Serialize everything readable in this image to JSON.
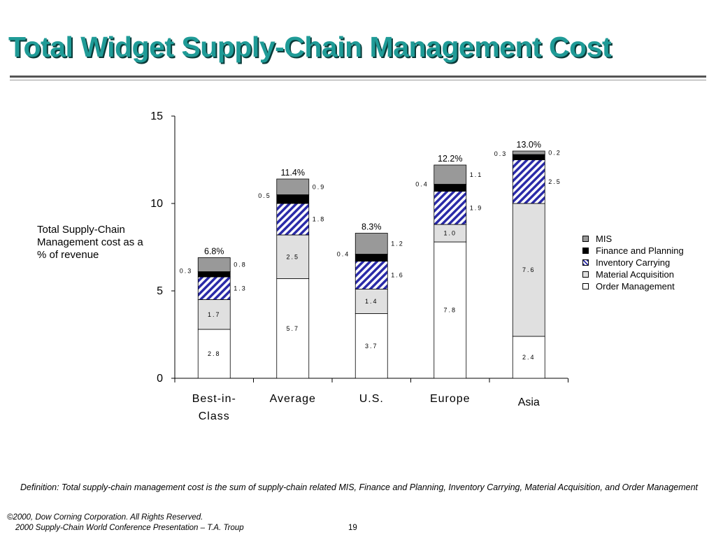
{
  "page": {
    "title": "Total Widget Supply-Chain Management Cost",
    "side_label": "Total Supply-Chain Management cost as a % of revenue",
    "definition": "Definition:  Total supply-chain management cost is the sum of supply-chain related MIS, Finance and Planning, Inventory Carrying, Material Acquisition, and Order Management",
    "copyright": "©2000, Dow Corning Corporation. All Rights Reserved.",
    "presentation": "2000 Supply-Chain World Conference Presentation – T.A. Troup",
    "page_number": "19"
  },
  "colors": {
    "title": "#1f9b97",
    "mis": "#999999",
    "finance": "#000000",
    "inventory_stripe": "#2a2aa8",
    "material": "#e0e0e0",
    "order": "#ffffff"
  },
  "chart_data": {
    "type": "bar",
    "stacked": true,
    "categories": [
      "Best-in-Class",
      "Average",
      "U.S.",
      "Europe",
      "Asia"
    ],
    "series": [
      {
        "name": "Order Management",
        "values": [
          2.8,
          5.7,
          3.7,
          7.8,
          2.4
        ],
        "labels": [
          "2.8",
          "5.7",
          "3.7",
          "7.8",
          "2.4"
        ]
      },
      {
        "name": "Material Acquisition",
        "values": [
          1.7,
          2.5,
          1.4,
          1.0,
          7.6
        ],
        "labels": [
          "1.7",
          "2.5",
          "1.4",
          "1.0",
          "7.6"
        ]
      },
      {
        "name": "Inventory Carrying",
        "values": [
          1.3,
          1.8,
          1.6,
          1.9,
          2.5
        ],
        "labels": [
          "1.3",
          "1.8",
          "1.6",
          "1.9",
          "2.5"
        ]
      },
      {
        "name": "Finance and Planning",
        "values": [
          0.3,
          0.5,
          0.4,
          0.4,
          0.3
        ],
        "labels": [
          "0.3",
          "0.5",
          "0.4",
          "0.4",
          "0.3"
        ]
      },
      {
        "name": "MIS",
        "values": [
          0.8,
          0.9,
          1.2,
          1.1,
          0.2
        ],
        "labels": [
          "0.8",
          "0.9",
          "1.2",
          "1.1",
          "0.2"
        ]
      }
    ],
    "totals": [
      "6.8%",
      "11.4%",
      "8.3%",
      "12.2%",
      "13.0%"
    ],
    "y_ticks": [
      "0",
      "5",
      "10",
      "15"
    ],
    "ylim": [
      0,
      15
    ],
    "legend": [
      "MIS",
      "Finance and Planning",
      "Inventory Carrying",
      "Material Acquisition",
      "Order Management"
    ],
    "legend_position": "right",
    "grid": false
  }
}
